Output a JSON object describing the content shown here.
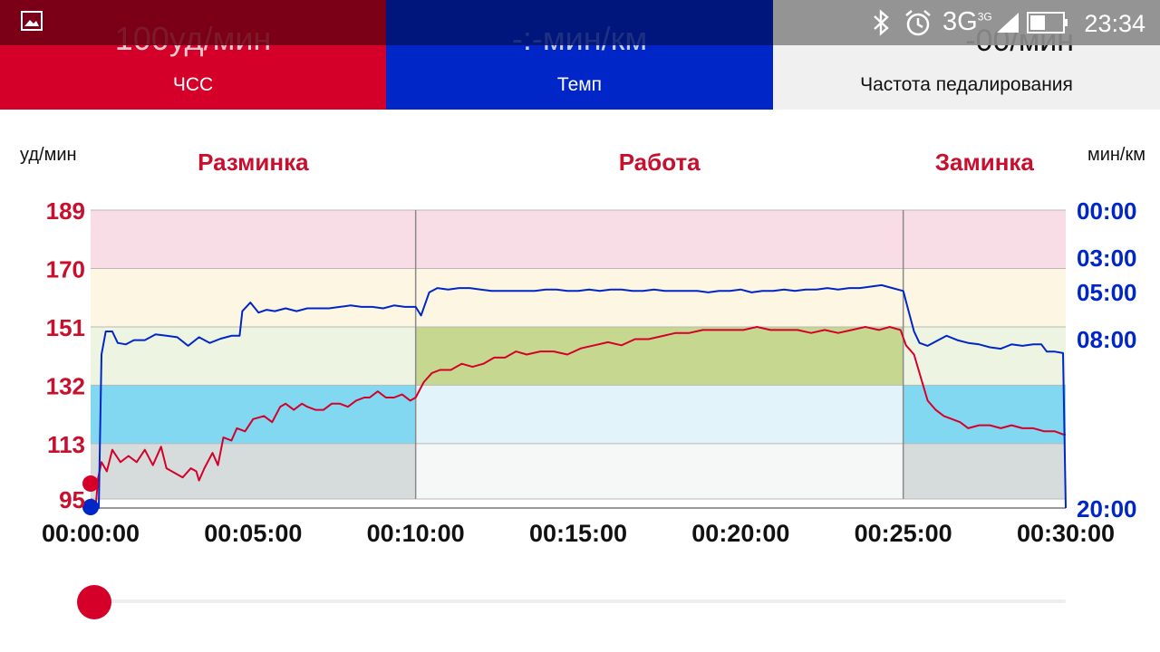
{
  "status_bar": {
    "time": "23:34",
    "network": "3G",
    "network_sup": "3G",
    "icons": [
      "gallery-icon",
      "bluetooth-icon",
      "alarm-icon",
      "signal-icon",
      "battery-icon"
    ]
  },
  "tiles": {
    "hr": {
      "value": "100уд/мин",
      "label": "ЧСС",
      "color": "#d4002a"
    },
    "pace": {
      "value": "-:-мин/км",
      "label": "Темп",
      "color": "#0026c8"
    },
    "cadence": {
      "value": "-00/мин",
      "label": "Частота педалирования"
    }
  },
  "chart_data": {
    "type": "line",
    "left_unit": "уд/мин",
    "right_unit": "мин/км",
    "phases": [
      {
        "name": "Разминка",
        "start": 0,
        "end": 600
      },
      {
        "name": "Работа",
        "start": 600,
        "end": 1500
      },
      {
        "name": "Заминка",
        "start": 1500,
        "end": 1800
      }
    ],
    "x_ticks": [
      {
        "t": 0,
        "label": "00:00:00"
      },
      {
        "t": 300,
        "label": "00:05:00"
      },
      {
        "t": 600,
        "label": "00:10:00"
      },
      {
        "t": 900,
        "label": "00:15:00"
      },
      {
        "t": 1200,
        "label": "00:20:00"
      },
      {
        "t": 1500,
        "label": "00:25:00"
      },
      {
        "t": 1800,
        "label": "00:30:00"
      }
    ],
    "hr_zone_bounds": [
      95,
      113,
      132,
      151,
      170,
      189
    ],
    "zone_colors": [
      "#d6dcdc",
      "#82d8f0",
      "#eef4e2",
      "#fdf6e2",
      "#f8dce6"
    ],
    "target_zone_colors": [
      "#f6f8f8",
      "#e2f4fa",
      "#c6d890",
      "#fdf6e2",
      "#f8dce6"
    ],
    "target_zone_index": 2,
    "pace_ticks": [
      "00:00",
      "03:00",
      "05:00",
      "08:00",
      "20:00"
    ],
    "pace_range": [
      0,
      20
    ],
    "series": [
      {
        "name": "ЧСС",
        "color": "#d4002a",
        "points": [
          [
            0,
            95
          ],
          [
            10,
            94
          ],
          [
            14,
            102
          ],
          [
            20,
            107
          ],
          [
            30,
            104
          ],
          [
            40,
            111
          ],
          [
            55,
            107
          ],
          [
            70,
            109
          ],
          [
            85,
            107
          ],
          [
            100,
            111
          ],
          [
            115,
            106
          ],
          [
            130,
            112
          ],
          [
            140,
            105
          ],
          [
            160,
            103
          ],
          [
            170,
            102
          ],
          [
            185,
            105
          ],
          [
            195,
            104
          ],
          [
            200,
            101
          ],
          [
            210,
            105
          ],
          [
            225,
            110
          ],
          [
            235,
            106
          ],
          [
            245,
            115
          ],
          [
            260,
            114
          ],
          [
            270,
            118
          ],
          [
            285,
            117
          ],
          [
            300,
            121
          ],
          [
            320,
            122
          ],
          [
            335,
            120
          ],
          [
            350,
            125
          ],
          [
            360,
            126
          ],
          [
            375,
            124
          ],
          [
            390,
            126
          ],
          [
            400,
            125
          ],
          [
            415,
            124
          ],
          [
            430,
            124
          ],
          [
            445,
            126
          ],
          [
            460,
            126
          ],
          [
            475,
            125
          ],
          [
            490,
            127
          ],
          [
            505,
            128
          ],
          [
            515,
            128
          ],
          [
            530,
            130
          ],
          [
            545,
            128
          ],
          [
            560,
            128
          ],
          [
            575,
            129
          ],
          [
            590,
            127
          ],
          [
            600,
            128
          ],
          [
            615,
            133
          ],
          [
            630,
            136
          ],
          [
            645,
            137
          ],
          [
            665,
            137
          ],
          [
            685,
            139
          ],
          [
            705,
            138
          ],
          [
            725,
            139
          ],
          [
            745,
            141
          ],
          [
            765,
            141
          ],
          [
            785,
            143
          ],
          [
            805,
            142
          ],
          [
            830,
            143
          ],
          [
            855,
            143
          ],
          [
            880,
            142
          ],
          [
            905,
            144
          ],
          [
            930,
            145
          ],
          [
            955,
            146
          ],
          [
            980,
            145
          ],
          [
            1005,
            147
          ],
          [
            1030,
            147
          ],
          [
            1055,
            148
          ],
          [
            1080,
            149
          ],
          [
            1105,
            149
          ],
          [
            1130,
            150
          ],
          [
            1155,
            150
          ],
          [
            1180,
            150
          ],
          [
            1205,
            150
          ],
          [
            1230,
            151
          ],
          [
            1255,
            150
          ],
          [
            1280,
            150
          ],
          [
            1305,
            150
          ],
          [
            1330,
            149
          ],
          [
            1355,
            150
          ],
          [
            1380,
            149
          ],
          [
            1405,
            150
          ],
          [
            1430,
            151
          ],
          [
            1455,
            150
          ],
          [
            1475,
            151
          ],
          [
            1495,
            150
          ],
          [
            1505,
            145
          ],
          [
            1520,
            142
          ],
          [
            1530,
            136
          ],
          [
            1545,
            127
          ],
          [
            1560,
            124
          ],
          [
            1575,
            122
          ],
          [
            1590,
            121
          ],
          [
            1605,
            120
          ],
          [
            1620,
            118
          ],
          [
            1640,
            119
          ],
          [
            1660,
            119
          ],
          [
            1680,
            118
          ],
          [
            1700,
            119
          ],
          [
            1720,
            118
          ],
          [
            1740,
            118
          ],
          [
            1760,
            117
          ],
          [
            1780,
            117
          ],
          [
            1795,
            116
          ],
          [
            1800,
            116
          ]
        ]
      },
      {
        "name": "Темп",
        "color": "#0026c8",
        "points": [
          [
            0,
            20
          ],
          [
            15,
            20
          ],
          [
            20,
            10
          ],
          [
            28,
            8.4
          ],
          [
            40,
            8.4
          ],
          [
            50,
            9.2
          ],
          [
            65,
            9.3
          ],
          [
            80,
            9.0
          ],
          [
            100,
            9.0
          ],
          [
            120,
            8.6
          ],
          [
            140,
            8.7
          ],
          [
            160,
            8.8
          ],
          [
            180,
            9.4
          ],
          [
            200,
            8.8
          ],
          [
            220,
            9.2
          ],
          [
            240,
            8.9
          ],
          [
            260,
            8.7
          ],
          [
            275,
            8.7
          ],
          [
            280,
            7.0
          ],
          [
            295,
            6.4
          ],
          [
            310,
            7.1
          ],
          [
            325,
            6.9
          ],
          [
            340,
            7.0
          ],
          [
            360,
            6.8
          ],
          [
            380,
            7.0
          ],
          [
            400,
            6.8
          ],
          [
            420,
            6.8
          ],
          [
            440,
            6.8
          ],
          [
            460,
            6.7
          ],
          [
            480,
            6.6
          ],
          [
            500,
            6.7
          ],
          [
            520,
            6.7
          ],
          [
            540,
            6.8
          ],
          [
            560,
            6.6
          ],
          [
            580,
            6.7
          ],
          [
            600,
            6.7
          ],
          [
            610,
            7.3
          ],
          [
            625,
            5.7
          ],
          [
            640,
            5.4
          ],
          [
            660,
            5.5
          ],
          [
            680,
            5.4
          ],
          [
            700,
            5.4
          ],
          [
            720,
            5.5
          ],
          [
            740,
            5.6
          ],
          [
            760,
            5.6
          ],
          [
            780,
            5.6
          ],
          [
            800,
            5.6
          ],
          [
            820,
            5.6
          ],
          [
            840,
            5.5
          ],
          [
            860,
            5.5
          ],
          [
            880,
            5.6
          ],
          [
            900,
            5.6
          ],
          [
            920,
            5.5
          ],
          [
            940,
            5.6
          ],
          [
            960,
            5.5
          ],
          [
            980,
            5.5
          ],
          [
            1000,
            5.6
          ],
          [
            1020,
            5.6
          ],
          [
            1040,
            5.5
          ],
          [
            1060,
            5.6
          ],
          [
            1080,
            5.6
          ],
          [
            1100,
            5.6
          ],
          [
            1120,
            5.6
          ],
          [
            1140,
            5.7
          ],
          [
            1160,
            5.6
          ],
          [
            1180,
            5.6
          ],
          [
            1200,
            5.5
          ],
          [
            1220,
            5.7
          ],
          [
            1240,
            5.6
          ],
          [
            1260,
            5.6
          ],
          [
            1280,
            5.5
          ],
          [
            1300,
            5.6
          ],
          [
            1320,
            5.5
          ],
          [
            1340,
            5.5
          ],
          [
            1360,
            5.4
          ],
          [
            1380,
            5.5
          ],
          [
            1400,
            5.4
          ],
          [
            1420,
            5.4
          ],
          [
            1440,
            5.3
          ],
          [
            1460,
            5.2
          ],
          [
            1480,
            5.4
          ],
          [
            1500,
            5.6
          ],
          [
            1510,
            7.0
          ],
          [
            1520,
            8.4
          ],
          [
            1530,
            9.2
          ],
          [
            1545,
            9.4
          ],
          [
            1560,
            9.1
          ],
          [
            1580,
            8.7
          ],
          [
            1600,
            9.0
          ],
          [
            1620,
            9.2
          ],
          [
            1640,
            9.3
          ],
          [
            1660,
            9.5
          ],
          [
            1680,
            9.6
          ],
          [
            1700,
            9.3
          ],
          [
            1720,
            9.4
          ],
          [
            1740,
            9.3
          ],
          [
            1755,
            9.3
          ],
          [
            1765,
            9.8
          ],
          [
            1780,
            9.8
          ],
          [
            1795,
            9.9
          ],
          [
            1800,
            20
          ]
        ]
      }
    ],
    "hr_marker_value": 100,
    "pace_marker_value": 20
  },
  "slider": {
    "position_fraction": 0
  }
}
